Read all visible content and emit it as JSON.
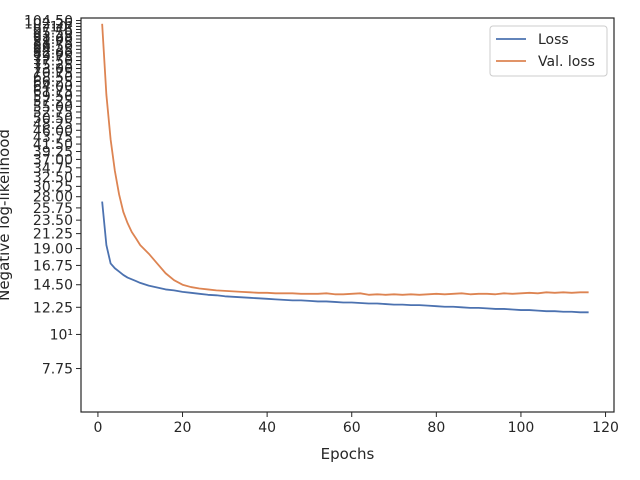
{
  "chart_data": {
    "type": "line",
    "title": "",
    "xlabel": "Epochs",
    "ylabel": "Negative log-likelihood",
    "yscale": "log",
    "xlim": [
      -4,
      122
    ],
    "ylim": [
      5.6,
      106.5
    ],
    "grid": false,
    "legend_position": "top-right",
    "x_ticks": [
      "0",
      "20",
      "40",
      "60",
      "80",
      "100",
      "120"
    ],
    "y_ticks": [
      {
        "value": 7.75,
        "label": "7.75"
      },
      {
        "value": 10,
        "label": "10¹"
      },
      {
        "value": 12.25,
        "label": "12.25"
      },
      {
        "value": 14.5,
        "label": "14.50"
      },
      {
        "value": 16.75,
        "label": "16.75"
      },
      {
        "value": 19,
        "label": "19.00"
      },
      {
        "value": 21.25,
        "label": "21.25"
      },
      {
        "value": 23.5,
        "label": "23.50"
      },
      {
        "value": 25.75,
        "label": "25.75"
      },
      {
        "value": 28,
        "label": "28.00"
      },
      {
        "value": 30.25,
        "label": "30.25"
      },
      {
        "value": 32.5,
        "label": "32.50"
      },
      {
        "value": 34.75,
        "label": "34.75"
      },
      {
        "value": 37,
        "label": "37.00"
      },
      {
        "value": 39.25,
        "label": "39.25"
      },
      {
        "value": 41.5,
        "label": "41.50"
      },
      {
        "value": 43.75,
        "label": "43.75"
      },
      {
        "value": 46,
        "label": "46.00"
      },
      {
        "value": 48.25,
        "label": "48.25"
      },
      {
        "value": 50.5,
        "label": "50.50"
      },
      {
        "value": 52.75,
        "label": "52.75"
      },
      {
        "value": 55,
        "label": "55.00"
      },
      {
        "value": 57.25,
        "label": "57.25"
      },
      {
        "value": 59.5,
        "label": "59.50"
      },
      {
        "value": 61.75,
        "label": "61.75"
      },
      {
        "value": 64,
        "label": "64.00"
      },
      {
        "value": 66.25,
        "label": "66.25"
      },
      {
        "value": 68.5,
        "label": "68.50"
      },
      {
        "value": 70.75,
        "label": "70.75"
      },
      {
        "value": 73,
        "label": "73.00"
      },
      {
        "value": 75.25,
        "label": "75.25"
      },
      {
        "value": 77.5,
        "label": "77.50"
      },
      {
        "value": 79.75,
        "label": "79.75"
      },
      {
        "value": 82,
        "label": "82.00"
      },
      {
        "value": 84.25,
        "label": "84.25"
      },
      {
        "value": 86.5,
        "label": "86.50"
      },
      {
        "value": 88.75,
        "label": "88.75"
      },
      {
        "value": 91,
        "label": "91.00"
      },
      {
        "value": 93.25,
        "label": "93.25"
      },
      {
        "value": 95.5,
        "label": "95.50"
      },
      {
        "value": 97.75,
        "label": "97.75"
      },
      {
        "value": 100,
        "label": "10²"
      },
      {
        "value": 102.25,
        "label": "102.25"
      },
      {
        "value": 104.5,
        "label": "104.50"
      }
    ],
    "series": [
      {
        "name": "Loss",
        "color": "#4c72b0",
        "points": [
          [
            1,
            27.0
          ],
          [
            2,
            19.5
          ],
          [
            3,
            17.0
          ],
          [
            4,
            16.4
          ],
          [
            5,
            16.0
          ],
          [
            6,
            15.6
          ],
          [
            7,
            15.3
          ],
          [
            8,
            15.1
          ],
          [
            9,
            14.9
          ],
          [
            10,
            14.7
          ],
          [
            12,
            14.4
          ],
          [
            14,
            14.2
          ],
          [
            16,
            14.0
          ],
          [
            18,
            13.9
          ],
          [
            20,
            13.75
          ],
          [
            22,
            13.65
          ],
          [
            24,
            13.55
          ],
          [
            26,
            13.45
          ],
          [
            28,
            13.4
          ],
          [
            30,
            13.3
          ],
          [
            32,
            13.25
          ],
          [
            34,
            13.2
          ],
          [
            36,
            13.15
          ],
          [
            38,
            13.1
          ],
          [
            40,
            13.05
          ],
          [
            42,
            13.0
          ],
          [
            44,
            12.95
          ],
          [
            46,
            12.9
          ],
          [
            48,
            12.9
          ],
          [
            50,
            12.85
          ],
          [
            52,
            12.8
          ],
          [
            54,
            12.8
          ],
          [
            56,
            12.75
          ],
          [
            58,
            12.7
          ],
          [
            60,
            12.7
          ],
          [
            62,
            12.65
          ],
          [
            64,
            12.6
          ],
          [
            66,
            12.6
          ],
          [
            68,
            12.55
          ],
          [
            70,
            12.5
          ],
          [
            72,
            12.5
          ],
          [
            74,
            12.45
          ],
          [
            76,
            12.45
          ],
          [
            78,
            12.4
          ],
          [
            80,
            12.35
          ],
          [
            82,
            12.3
          ],
          [
            84,
            12.3
          ],
          [
            86,
            12.25
          ],
          [
            88,
            12.2
          ],
          [
            90,
            12.2
          ],
          [
            92,
            12.15
          ],
          [
            94,
            12.1
          ],
          [
            96,
            12.1
          ],
          [
            98,
            12.05
          ],
          [
            100,
            12.0
          ],
          [
            102,
            12.0
          ],
          [
            104,
            11.95
          ],
          [
            106,
            11.9
          ],
          [
            108,
            11.9
          ],
          [
            110,
            11.85
          ],
          [
            112,
            11.85
          ],
          [
            114,
            11.8
          ],
          [
            116,
            11.8
          ]
        ]
      },
      {
        "name": "Val. loss",
        "color": "#dd8452",
        "points": [
          [
            1,
            102.0
          ],
          [
            2,
            60.0
          ],
          [
            3,
            43.0
          ],
          [
            4,
            34.0
          ],
          [
            5,
            28.5
          ],
          [
            6,
            25.0
          ],
          [
            7,
            23.0
          ],
          [
            8,
            21.5
          ],
          [
            9,
            20.5
          ],
          [
            10,
            19.5
          ],
          [
            12,
            18.3
          ],
          [
            14,
            17.0
          ],
          [
            16,
            15.8
          ],
          [
            18,
            15.0
          ],
          [
            20,
            14.5
          ],
          [
            22,
            14.25
          ],
          [
            24,
            14.1
          ],
          [
            26,
            14.0
          ],
          [
            28,
            13.9
          ],
          [
            30,
            13.85
          ],
          [
            32,
            13.8
          ],
          [
            34,
            13.75
          ],
          [
            36,
            13.7
          ],
          [
            38,
            13.65
          ],
          [
            40,
            13.65
          ],
          [
            42,
            13.6
          ],
          [
            44,
            13.6
          ],
          [
            46,
            13.6
          ],
          [
            48,
            13.55
          ],
          [
            50,
            13.55
          ],
          [
            52,
            13.55
          ],
          [
            54,
            13.6
          ],
          [
            56,
            13.5
          ],
          [
            58,
            13.5
          ],
          [
            60,
            13.55
          ],
          [
            62,
            13.6
          ],
          [
            64,
            13.45
          ],
          [
            66,
            13.5
          ],
          [
            68,
            13.45
          ],
          [
            70,
            13.5
          ],
          [
            72,
            13.45
          ],
          [
            74,
            13.5
          ],
          [
            76,
            13.45
          ],
          [
            78,
            13.5
          ],
          [
            80,
            13.55
          ],
          [
            82,
            13.5
          ],
          [
            84,
            13.55
          ],
          [
            86,
            13.6
          ],
          [
            88,
            13.5
          ],
          [
            90,
            13.55
          ],
          [
            92,
            13.55
          ],
          [
            94,
            13.5
          ],
          [
            96,
            13.6
          ],
          [
            98,
            13.55
          ],
          [
            100,
            13.6
          ],
          [
            102,
            13.65
          ],
          [
            104,
            13.6
          ],
          [
            106,
            13.7
          ],
          [
            108,
            13.65
          ],
          [
            110,
            13.7
          ],
          [
            112,
            13.65
          ],
          [
            114,
            13.7
          ],
          [
            116,
            13.7
          ]
        ]
      }
    ]
  }
}
